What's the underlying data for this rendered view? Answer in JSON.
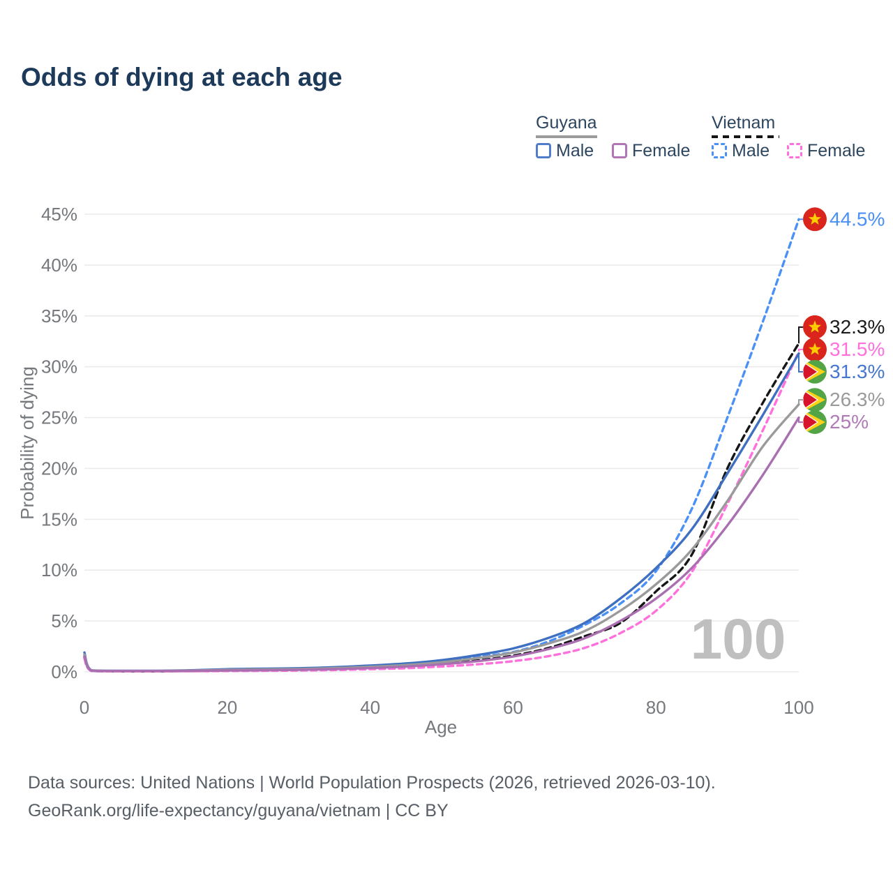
{
  "title": {
    "text": "Odds of dying at each age"
  },
  "legend": {
    "groups": [
      {
        "country": "Guyana",
        "line_style": "solid",
        "items": [
          {
            "label": "Male",
            "color": "#4f7dc9"
          },
          {
            "label": "Female",
            "color": "#b276b6"
          }
        ]
      },
      {
        "country": "Vietnam",
        "line_style": "dashed",
        "items": [
          {
            "label": "Male",
            "color": "#4a90f5"
          },
          {
            "label": "Female",
            "color": "#ff70dd"
          }
        ]
      }
    ]
  },
  "chart_data": {
    "type": "line",
    "title": "Odds of dying at each age",
    "xlabel": "Age",
    "ylabel": "Probability of dying",
    "xlim": [
      0,
      100
    ],
    "ylim": [
      0,
      45
    ],
    "x_ticks": [
      0,
      20,
      40,
      60,
      80,
      100
    ],
    "y_ticks": [
      "0%",
      "5%",
      "10%",
      "15%",
      "20%",
      "25%",
      "30%",
      "35%",
      "40%",
      "45%"
    ],
    "grid": "horizontal",
    "watermark": "100",
    "x": [
      0,
      1,
      5,
      10,
      15,
      20,
      25,
      30,
      35,
      40,
      45,
      50,
      55,
      60,
      65,
      70,
      75,
      80,
      85,
      90,
      95,
      100
    ],
    "series": [
      {
        "id": "vietnam-male",
        "name": "Vietnam Male",
        "country": "Vietnam",
        "sex": "Male",
        "color": "#4a90f5",
        "dash": "8 6",
        "flag": "vn",
        "values": [
          1.6,
          0.1,
          0.06,
          0.06,
          0.11,
          0.16,
          0.22,
          0.3,
          0.41,
          0.56,
          0.77,
          1.07,
          1.5,
          1.95,
          3.0,
          4.6,
          6.7,
          9.9,
          16.0,
          25.0,
          34.5,
          44.5
        ],
        "end_label": {
          "text": "44.5%",
          "color": "#4a90f5"
        }
      },
      {
        "id": "vietnam-total",
        "name": "Vietnam",
        "country": "Vietnam",
        "sex": "Both",
        "color": "#161616",
        "dash": "9 6",
        "flag": "vn",
        "values": [
          1.45,
          0.09,
          0.055,
          0.055,
          0.09,
          0.12,
          0.16,
          0.22,
          0.3,
          0.41,
          0.57,
          0.8,
          1.12,
          1.6,
          2.35,
          3.5,
          4.8,
          7.9,
          11.5,
          20.0,
          26.5,
          32.3
        ],
        "end_label": {
          "text": "32.3%",
          "color": "#1c1c1c"
        }
      },
      {
        "id": "vietnam-female",
        "name": "Vietnam Female",
        "country": "Vietnam",
        "sex": "Female",
        "color": "#ff70dd",
        "dash": "8 6",
        "flag": "vn",
        "values": [
          1.3,
          0.08,
          0.05,
          0.05,
          0.06,
          0.08,
          0.1,
          0.13,
          0.18,
          0.26,
          0.36,
          0.52,
          0.74,
          1.05,
          1.55,
          2.35,
          3.8,
          6.0,
          9.8,
          16.5,
          23.8,
          31.5
        ],
        "end_label": {
          "text": "31.5%",
          "color": "#ff70dd"
        }
      },
      {
        "id": "guyana-male",
        "name": "Guyana Male",
        "country": "Guyana",
        "sex": "Male",
        "color": "#3e6fc1",
        "dash": null,
        "flag": "gy",
        "values": [
          1.9,
          0.15,
          0.1,
          0.1,
          0.16,
          0.26,
          0.31,
          0.36,
          0.46,
          0.62,
          0.82,
          1.15,
          1.65,
          2.3,
          3.35,
          4.8,
          7.2,
          10.2,
          14.0,
          19.5,
          25.3,
          31.3
        ],
        "end_label": {
          "text": "31.3%",
          "color": "#4577d1"
        }
      },
      {
        "id": "guyana-total",
        "name": "Guyana",
        "country": "Guyana",
        "sex": "Both",
        "color": "#9a9a9a",
        "dash": null,
        "flag": "gy",
        "values": [
          1.7,
          0.14,
          0.09,
          0.09,
          0.13,
          0.2,
          0.24,
          0.28,
          0.37,
          0.5,
          0.67,
          0.95,
          1.35,
          1.9,
          2.8,
          4.0,
          6.0,
          8.6,
          12.0,
          16.8,
          22.2,
          26.3
        ],
        "end_label": {
          "text": "26.3%",
          "color": "#9a9a9a"
        }
      },
      {
        "id": "guyana-female",
        "name": "Guyana Female",
        "country": "Guyana",
        "sex": "Female",
        "color": "#a96fb0",
        "dash": null,
        "flag": "gy",
        "values": [
          1.5,
          0.12,
          0.08,
          0.08,
          0.1,
          0.13,
          0.16,
          0.2,
          0.27,
          0.37,
          0.52,
          0.74,
          1.05,
          1.5,
          2.25,
          3.3,
          5.0,
          7.2,
          10.2,
          14.4,
          19.4,
          25.0
        ],
        "end_label": {
          "text": "25%",
          "color": "#b07ab8"
        }
      }
    ],
    "flag_colors": {
      "vn": {
        "bg": "#da251d",
        "star": "#ffcd00"
      },
      "gy": {
        "bg": "#52a447",
        "chevron": "#fcd116",
        "arrow": "#d6152b"
      }
    }
  },
  "footer": {
    "line1": "Data sources: United Nations | World Population Prospects (2026, retrieved 2026-03-10).",
    "line2": "GeoRank.org/life-expectancy/guyana/vietnam | CC BY"
  }
}
